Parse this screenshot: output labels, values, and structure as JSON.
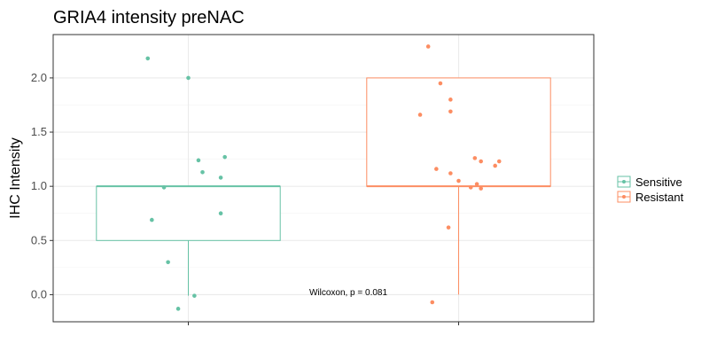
{
  "chart_data": {
    "type": "box",
    "title": "GRIA4 intensity preNAC",
    "xlabel": "",
    "ylabel": "IHC Intensity",
    "ylim": [
      -0.25,
      2.4
    ],
    "yticks": [
      0.0,
      0.5,
      1.0,
      1.5,
      2.0
    ],
    "ytick_labels": [
      "0.0",
      "0.5",
      "1.0",
      "1.5",
      "2.0"
    ],
    "grid": true,
    "legend_position": "right",
    "annotation": "Wilcoxon, p = 0.081",
    "series": [
      {
        "name": "Sensitive",
        "color": "#66c2a5",
        "box": {
          "lower_whisker": -0.01,
          "q1": 0.5,
          "median": 1.0,
          "q3": 1.0,
          "upper_whisker": 1.0
        },
        "points": [
          {
            "jitter": -0.2,
            "y": 2.18
          },
          {
            "jitter": 0.0,
            "y": 2.0
          },
          {
            "jitter": 0.18,
            "y": 1.27
          },
          {
            "jitter": 0.05,
            "y": 1.24
          },
          {
            "jitter": 0.07,
            "y": 1.13
          },
          {
            "jitter": 0.16,
            "y": 1.08
          },
          {
            "jitter": -0.12,
            "y": 0.99
          },
          {
            "jitter": 0.16,
            "y": 0.75
          },
          {
            "jitter": -0.18,
            "y": 0.69
          },
          {
            "jitter": -0.1,
            "y": 0.3
          },
          {
            "jitter": 0.03,
            "y": -0.01
          },
          {
            "jitter": -0.05,
            "y": -0.13
          }
        ]
      },
      {
        "name": "Resistant",
        "color": "#fc8d62",
        "box": {
          "lower_whisker": 0.0,
          "q1": 1.0,
          "median": 1.0,
          "q3": 2.0,
          "upper_whisker": 2.0
        },
        "points": [
          {
            "jitter": -0.15,
            "y": 2.29
          },
          {
            "jitter": -0.09,
            "y": 1.95
          },
          {
            "jitter": -0.04,
            "y": 1.8
          },
          {
            "jitter": -0.04,
            "y": 1.69
          },
          {
            "jitter": -0.19,
            "y": 1.66
          },
          {
            "jitter": 0.08,
            "y": 1.26
          },
          {
            "jitter": 0.11,
            "y": 1.23
          },
          {
            "jitter": 0.2,
            "y": 1.23
          },
          {
            "jitter": 0.18,
            "y": 1.19
          },
          {
            "jitter": -0.11,
            "y": 1.16
          },
          {
            "jitter": -0.04,
            "y": 1.12
          },
          {
            "jitter": 0.0,
            "y": 1.05
          },
          {
            "jitter": 0.09,
            "y": 1.02
          },
          {
            "jitter": 0.06,
            "y": 0.99
          },
          {
            "jitter": 0.11,
            "y": 0.98
          },
          {
            "jitter": -0.05,
            "y": 0.62
          },
          {
            "jitter": -0.13,
            "y": -0.07
          }
        ]
      }
    ]
  }
}
